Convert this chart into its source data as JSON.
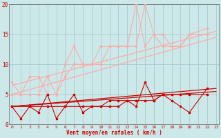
{
  "bg_color": "#cce8e8",
  "grid_color": "#aacccc",
  "xlabel": "Vent moyen/en rafales ( km/h )",
  "xlabel_color": "#cc0000",
  "tick_color": "#cc0000",
  "xmin": 0,
  "xmax": 23,
  "ymin": 0,
  "ymax": 20,
  "yticks": [
    0,
    5,
    10,
    15,
    20
  ],
  "xticks": [
    0,
    1,
    2,
    3,
    4,
    5,
    6,
    7,
    8,
    9,
    10,
    11,
    12,
    13,
    14,
    15,
    16,
    17,
    18,
    19,
    20,
    21,
    22,
    23
  ],
  "light_jagged": [
    [
      0,
      7,
      1,
      5,
      2,
      8,
      3,
      8,
      4,
      5,
      5,
      5,
      6,
      10,
      7,
      13,
      8,
      10,
      9,
      10,
      10,
      13,
      11,
      13,
      12,
      13,
      13,
      13,
      14,
      20,
      15,
      13,
      16,
      15,
      17,
      13,
      18,
      13,
      19,
      13,
      20,
      15,
      22,
      16
    ],
    [
      0,
      5,
      1,
      5,
      2,
      5,
      3,
      5,
      4,
      8,
      5,
      5,
      6,
      8,
      7,
      10,
      8,
      10,
      9,
      10,
      10,
      10,
      11,
      13,
      12,
      13,
      13,
      13,
      14,
      13,
      15,
      20,
      16,
      15,
      17,
      15,
      18,
      13,
      19,
      13,
      20,
      15,
      22,
      15
    ]
  ],
  "light_trend": [
    [
      [
        0,
        6.5
      ],
      [
        23,
        15.5
      ]
    ],
    [
      [
        0,
        5.0
      ],
      [
        23,
        14.5
      ]
    ]
  ],
  "dark_jagged": [
    [
      0,
      3,
      1,
      1,
      2,
      3,
      3,
      2,
      4,
      5,
      5,
      1,
      6,
      3,
      7,
      5,
      8,
      2,
      9,
      3,
      10,
      3,
      11,
      3,
      12,
      3,
      13,
      4,
      14,
      3,
      15,
      7,
      16,
      4,
      17,
      5,
      18,
      4,
      19,
      3,
      20,
      2,
      22,
      6
    ],
    [
      0,
      3,
      2,
      3,
      4,
      3,
      6,
      3,
      8,
      3,
      9,
      3,
      10,
      3,
      11,
      4,
      12,
      4,
      13,
      4,
      14,
      4,
      15,
      4,
      16,
      4,
      17,
      5,
      18,
      5,
      19,
      5,
      20,
      5,
      22,
      5
    ]
  ],
  "dark_trend": [
    [
      [
        0,
        3.0
      ],
      [
        23,
        6.0
      ]
    ],
    [
      [
        0,
        3.0
      ],
      [
        23,
        5.5
      ]
    ]
  ],
  "dark_color": "#cc0000",
  "light_color": "#ffaaaa",
  "markersize": 2.0
}
